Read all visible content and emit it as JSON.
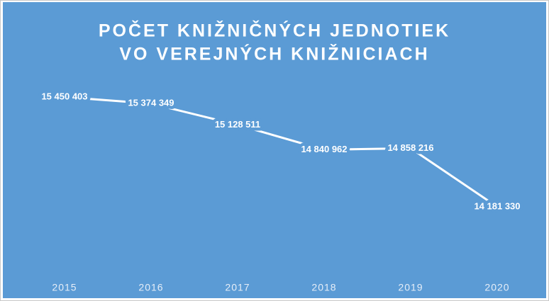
{
  "chart_data": {
    "type": "line",
    "title": [
      "POČET KNIŽNIČNÝCH JEDNOTIEK",
      "VO VEREJNÝCH KNIŽNICIACH"
    ],
    "categories": [
      "2015",
      "2016",
      "2017",
      "2018",
      "2019",
      "2020"
    ],
    "values": [
      15450403,
      15374349,
      15128511,
      14840962,
      14858216,
      14181330
    ],
    "value_labels": [
      "15 450 403",
      "15 374 349",
      "15 128 511",
      "14 840 962",
      "14 858 216",
      "14 181 330"
    ],
    "color": "#ffffff"
  }
}
